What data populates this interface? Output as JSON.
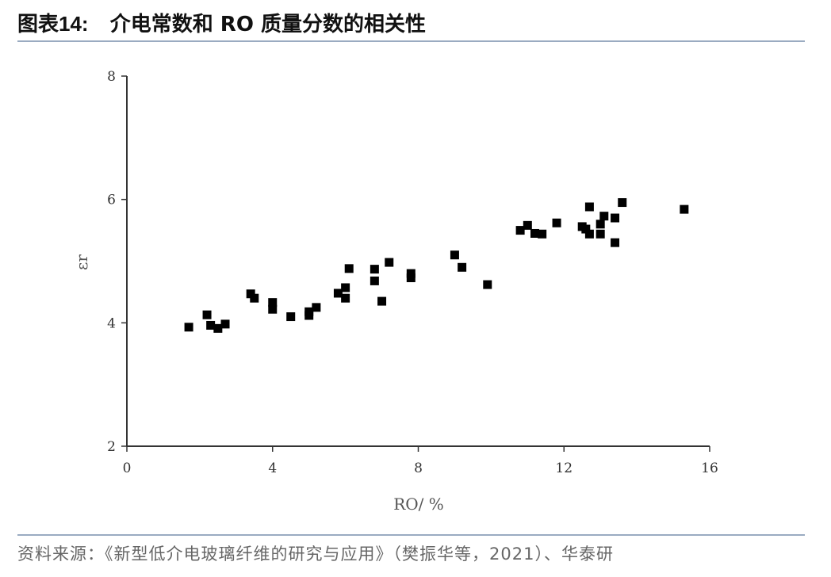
{
  "header": {
    "title_prefix": "图表",
    "title_num": "14:",
    "title_text": "介电常数和 RO 质量分数的相关性"
  },
  "footer": {
    "source": "资料来源：《新型低介电玻璃纤维的研究与应用》（樊振华等，2021）、华泰研"
  },
  "colors": {
    "rule": "#9aabc1",
    "marker": "#000000",
    "axis": "#333333"
  },
  "chart_data": {
    "type": "scatter",
    "xlabel": "RO/ %",
    "ylabel": "εr",
    "xlim": [
      0,
      16
    ],
    "ylim": [
      2,
      8
    ],
    "xticks": [
      0,
      4,
      8,
      12,
      16
    ],
    "yticks": [
      2,
      4,
      6,
      8
    ],
    "grid": false,
    "series": [
      {
        "points": [
          [
            1.7,
            3.93
          ],
          [
            2.2,
            4.13
          ],
          [
            2.3,
            3.96
          ],
          [
            2.5,
            3.91
          ],
          [
            2.7,
            3.98
          ],
          [
            3.4,
            4.47
          ],
          [
            3.5,
            4.4
          ],
          [
            4.0,
            4.33
          ],
          [
            4.0,
            4.22
          ],
          [
            4.5,
            4.1
          ],
          [
            5.0,
            4.12
          ],
          [
            5.0,
            4.18
          ],
          [
            5.2,
            4.25
          ],
          [
            5.8,
            4.48
          ],
          [
            6.0,
            4.57
          ],
          [
            6.0,
            4.4
          ],
          [
            6.1,
            4.88
          ],
          [
            6.8,
            4.87
          ],
          [
            6.8,
            4.68
          ],
          [
            7.0,
            4.35
          ],
          [
            7.2,
            4.98
          ],
          [
            7.8,
            4.8
          ],
          [
            7.8,
            4.73
          ],
          [
            9.0,
            5.1
          ],
          [
            9.2,
            4.9
          ],
          [
            9.9,
            4.62
          ],
          [
            10.8,
            5.5
          ],
          [
            11.0,
            5.58
          ],
          [
            11.2,
            5.45
          ],
          [
            11.4,
            5.44
          ],
          [
            11.8,
            5.62
          ],
          [
            12.5,
            5.56
          ],
          [
            12.6,
            5.52
          ],
          [
            12.7,
            5.88
          ],
          [
            12.7,
            5.44
          ],
          [
            13.0,
            5.6
          ],
          [
            13.0,
            5.44
          ],
          [
            13.1,
            5.73
          ],
          [
            13.4,
            5.7
          ],
          [
            13.4,
            5.3
          ],
          [
            13.6,
            5.95
          ],
          [
            15.3,
            5.84
          ]
        ]
      }
    ]
  }
}
